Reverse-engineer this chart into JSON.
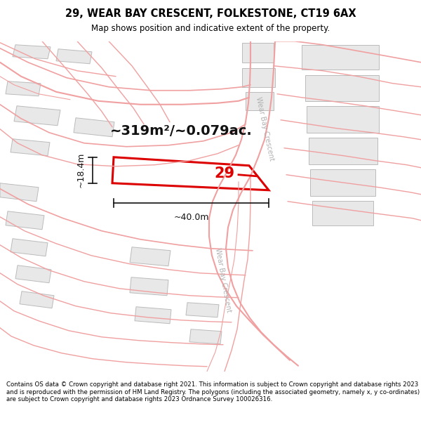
{
  "title": "29, WEAR BAY CRESCENT, FOLKESTONE, CT19 6AX",
  "subtitle": "Map shows position and indicative extent of the property.",
  "footer": "Contains OS data © Crown copyright and database right 2021. This information is subject to Crown copyright and database rights 2023 and is reproduced with the permission of HM Land Registry. The polygons (including the associated geometry, namely x, y co-ordinates) are subject to Crown copyright and database rights 2023 Ordnance Survey 100026316.",
  "area_label": "~319m²/~0.079ac.",
  "width_label": "~40.0m",
  "height_label": "~18.4m",
  "plot_number": "29",
  "map_bg": "#ffffff",
  "highlight_color": "#dd0000",
  "road_color": "#f0a0a0",
  "road_outline_color": "#e8b0b0",
  "building_fill": "#e8e8e8",
  "building_edge": "#bbbbbb",
  "road_label_color": "#aaaaaa",
  "dim_color": "#111111",
  "area_label_color": "#111111"
}
